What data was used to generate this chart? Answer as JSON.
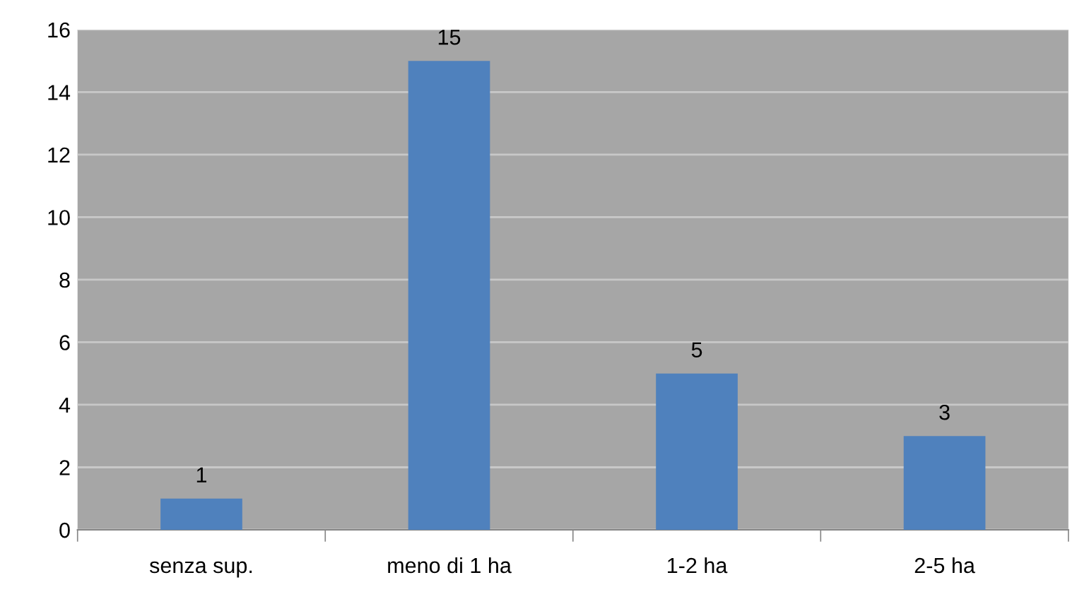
{
  "chart_data": {
    "type": "bar",
    "categories": [
      "senza sup.",
      "meno di 1 ha",
      "1-2 ha",
      "2-5 ha"
    ],
    "values": [
      1,
      15,
      5,
      3
    ],
    "color": "#4f81bd",
    "ylim": [
      0,
      16
    ],
    "yticks": [
      0,
      2,
      4,
      6,
      8,
      10,
      12,
      14,
      16
    ],
    "grid": "y",
    "data_labels": true
  }
}
